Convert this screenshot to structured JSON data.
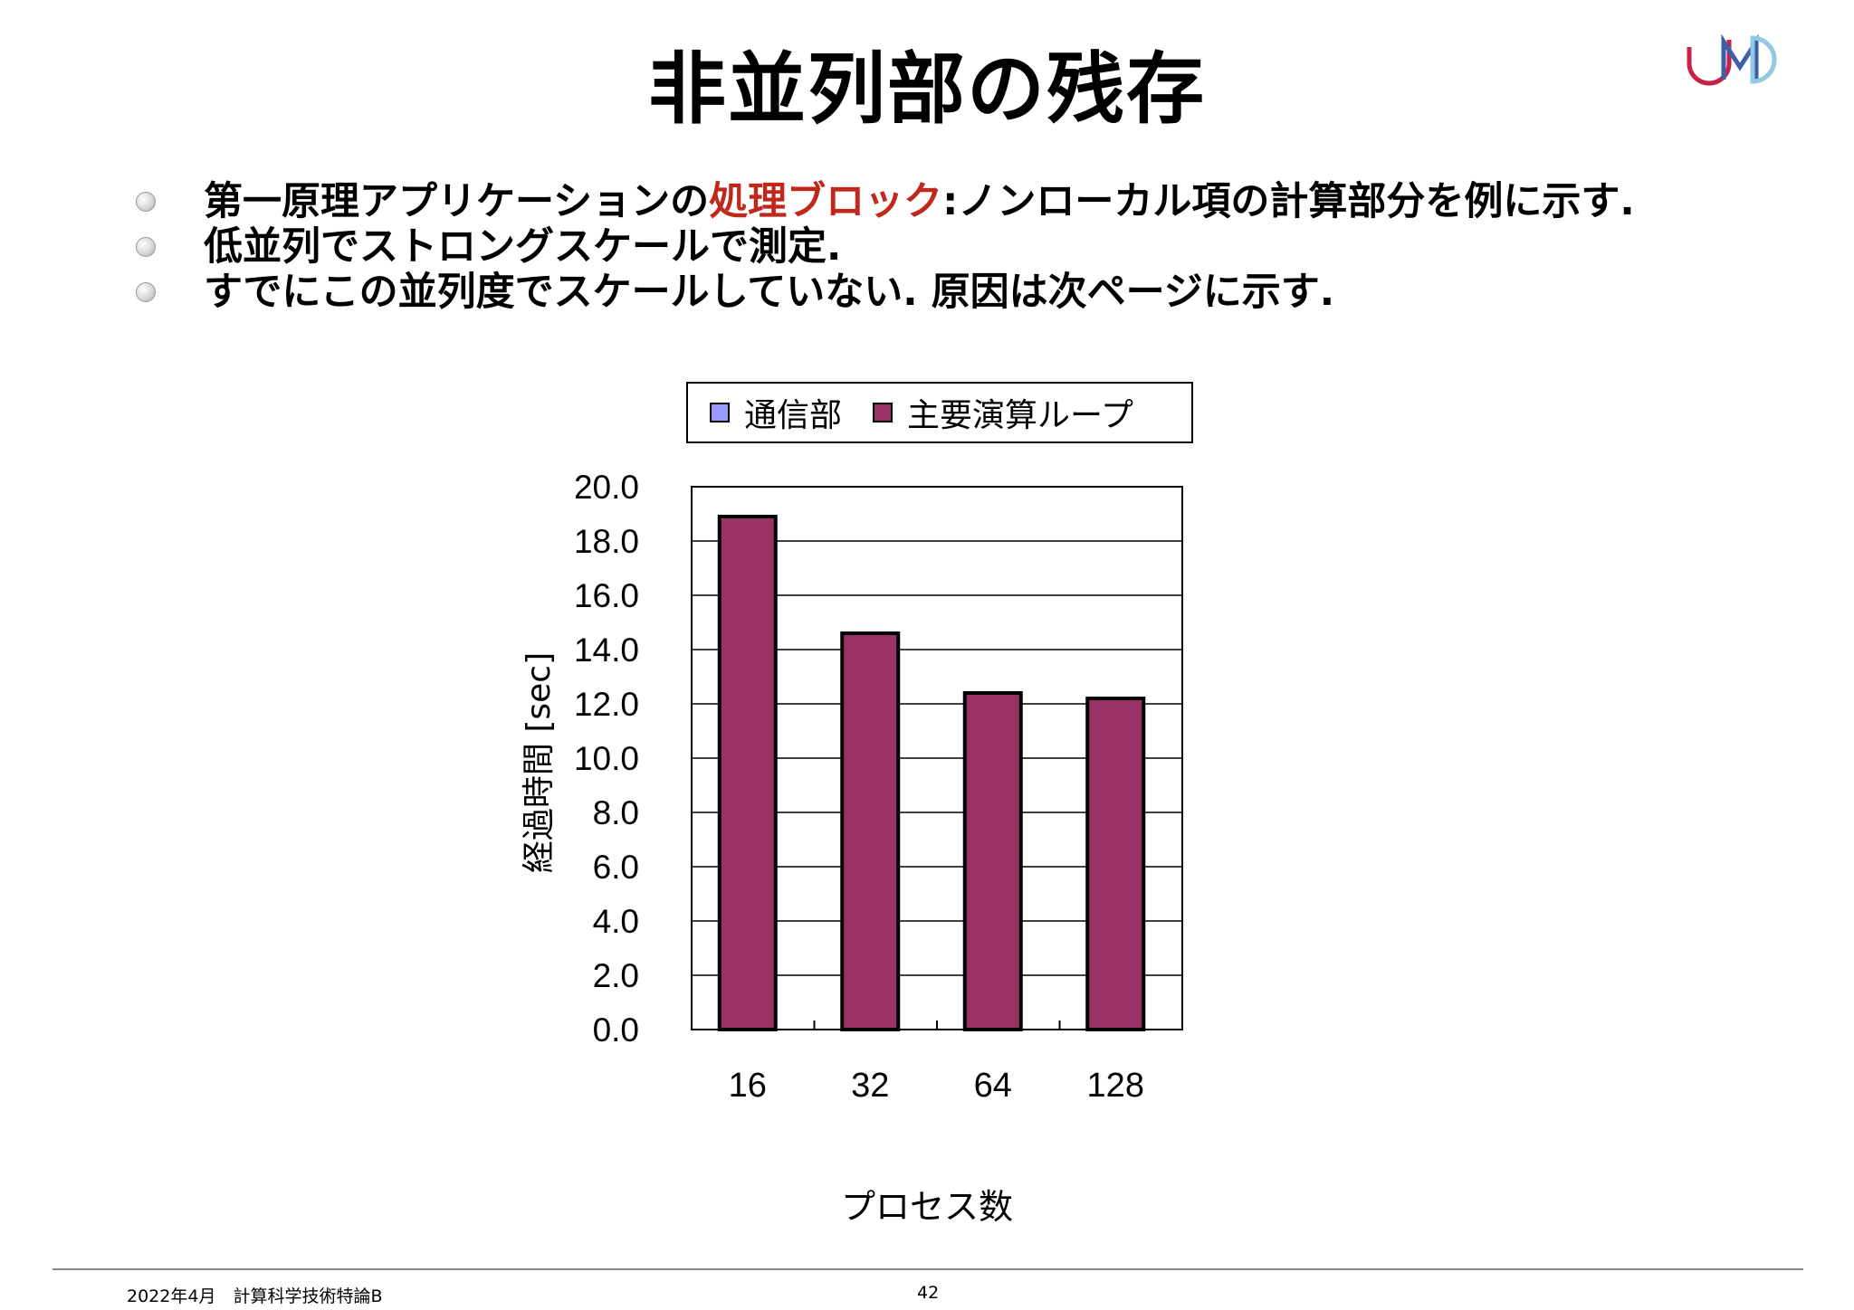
{
  "title": "非並列部の残存",
  "bullets": [
    {
      "pre": "第一原理アプリケーションの",
      "highlight": "処理ブロック",
      "post": ":ノンローカル項の計算部分を例に示す."
    },
    {
      "pre": "低並列でストロングスケールで測定.",
      "highlight": "",
      "post": ""
    },
    {
      "pre": "すでにこの並列度でスケールしていない. 原因は次ページに示す.",
      "highlight": "",
      "post": ""
    }
  ],
  "logo": {
    "text": "JMD",
    "icon": "jmd-logo",
    "colors": [
      "#c8224a",
      "#3b5fa8",
      "#8fc9e6"
    ]
  },
  "chart_data": {
    "type": "bar",
    "categories": [
      "16",
      "32",
      "64",
      "128"
    ],
    "series": [
      {
        "name": "通信部",
        "color": "#9999ff",
        "values": [
          0,
          0,
          0,
          0
        ]
      },
      {
        "name": "主要演算ループ",
        "color": "#993366",
        "values": [
          18.9,
          14.6,
          12.4,
          12.2
        ]
      }
    ],
    "stacked": true,
    "xlabel": "プロセス数",
    "ylabel": "経過時間 [sec]",
    "ylim": [
      0,
      20
    ],
    "yticks": [
      "0.0",
      "2.0",
      "4.0",
      "6.0",
      "8.0",
      "10.0",
      "12.0",
      "14.0",
      "16.0",
      "18.0",
      "20.0"
    ],
    "grid": true,
    "legend_position": "top"
  },
  "footer": {
    "left": "2022年4月　計算科学技術特論B",
    "page": "42"
  }
}
